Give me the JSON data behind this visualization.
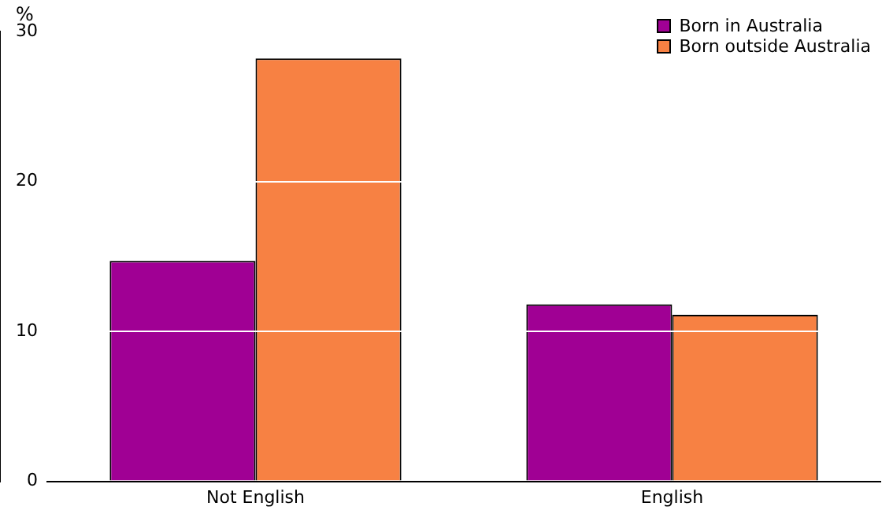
{
  "chart_data": {
    "type": "bar",
    "ylabel": "%",
    "categories": [
      "Not English",
      "English"
    ],
    "series": [
      {
        "name": "Born in Australia",
        "color": "#a00094",
        "values": [
          14.7,
          11.8
        ]
      },
      {
        "name": "Born outside Australia",
        "color": "#f78143",
        "values": [
          28.2,
          11.1
        ]
      }
    ],
    "ylim": [
      0,
      30
    ],
    "yticks": [
      0,
      10,
      20,
      30
    ],
    "grid": "y",
    "legend": "top right"
  }
}
